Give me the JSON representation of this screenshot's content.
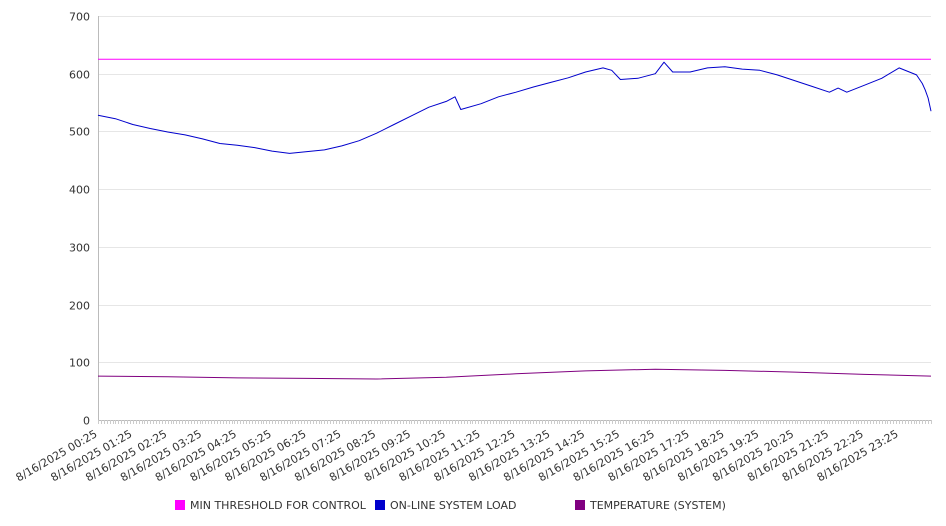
{
  "chart_data": {
    "type": "line",
    "title": "",
    "xlabel": "",
    "ylabel": "",
    "ylim": [
      0,
      700
    ],
    "yticks": [
      0,
      100,
      200,
      300,
      400,
      500,
      600,
      700
    ],
    "grid": true,
    "legend_position": "bottom",
    "x_tick_labels": [
      "8/16/2025 00:25",
      "8/16/2025 01:25",
      "8/16/2025 02:25",
      "8/16/2025 03:25",
      "8/16/2025 04:25",
      "8/16/2025 05:25",
      "8/16/2025 06:25",
      "8/16/2025 07:25",
      "8/16/2025 08:25",
      "8/16/2025 09:25",
      "8/16/2025 10:25",
      "8/16/2025 11:25",
      "8/16/2025 12:25",
      "8/16/2025 13:25",
      "8/16/2025 14:25",
      "8/16/2025 15:25",
      "8/16/2025 16:25",
      "8/16/2025 17:25",
      "8/16/2025 18:25",
      "8/16/2025 19:25",
      "8/16/2025 20:25",
      "8/16/2025 21:25",
      "8/16/2025 22:25",
      "8/16/2025 23:25"
    ],
    "x_start": "8/16/2025 00:25",
    "x_end": "8/17/2025 00:20",
    "series": [
      {
        "name": "MIN THRESHOLD FOR CONTROL",
        "color": "#ff00ff",
        "points": [
          [
            "8/16/2025 00:25",
            625
          ],
          [
            "8/17/2025 00:20",
            625
          ]
        ]
      },
      {
        "name": "ON-LINE SYSTEM LOAD",
        "color": "#0000cc",
        "points": [
          [
            "8/16/2025 00:25",
            528
          ],
          [
            "8/16/2025 00:55",
            522
          ],
          [
            "8/16/2025 01:25",
            512
          ],
          [
            "8/16/2025 01:55",
            505
          ],
          [
            "8/16/2025 02:25",
            499
          ],
          [
            "8/16/2025 02:55",
            494
          ],
          [
            "8/16/2025 03:25",
            487
          ],
          [
            "8/16/2025 03:55",
            479
          ],
          [
            "8/16/2025 04:25",
            476
          ],
          [
            "8/16/2025 04:55",
            472
          ],
          [
            "8/16/2025 05:25",
            466
          ],
          [
            "8/16/2025 05:55",
            462
          ],
          [
            "8/16/2025 06:25",
            465
          ],
          [
            "8/16/2025 06:55",
            468
          ],
          [
            "8/16/2025 07:25",
            475
          ],
          [
            "8/16/2025 07:55",
            484
          ],
          [
            "8/16/2025 08:25",
            497
          ],
          [
            "8/16/2025 08:55",
            512
          ],
          [
            "8/16/2025 09:25",
            527
          ],
          [
            "8/16/2025 09:55",
            542
          ],
          [
            "8/16/2025 10:25",
            552
          ],
          [
            "8/16/2025 10:40",
            560
          ],
          [
            "8/16/2025 10:50",
            538
          ],
          [
            "8/16/2025 11:25",
            548
          ],
          [
            "8/16/2025 11:55",
            560
          ],
          [
            "8/16/2025 12:25",
            568
          ],
          [
            "8/16/2025 12:55",
            577
          ],
          [
            "8/16/2025 13:25",
            585
          ],
          [
            "8/16/2025 13:55",
            593
          ],
          [
            "8/16/2025 14:25",
            603
          ],
          [
            "8/16/2025 14:55",
            610
          ],
          [
            "8/16/2025 15:10",
            606
          ],
          [
            "8/16/2025 15:25",
            590
          ],
          [
            "8/16/2025 15:55",
            592
          ],
          [
            "8/16/2025 16:25",
            600
          ],
          [
            "8/16/2025 16:40",
            620
          ],
          [
            "8/16/2025 16:55",
            603
          ],
          [
            "8/16/2025 17:25",
            603
          ],
          [
            "8/16/2025 17:55",
            610
          ],
          [
            "8/16/2025 18:25",
            612
          ],
          [
            "8/16/2025 18:55",
            608
          ],
          [
            "8/16/2025 19:25",
            606
          ],
          [
            "8/16/2025 19:55",
            598
          ],
          [
            "8/16/2025 20:25",
            588
          ],
          [
            "8/16/2025 20:55",
            578
          ],
          [
            "8/16/2025 21:25",
            568
          ],
          [
            "8/16/2025 21:40",
            575
          ],
          [
            "8/16/2025 21:55",
            568
          ],
          [
            "8/16/2025 22:25",
            580
          ],
          [
            "8/16/2025 22:55",
            592
          ],
          [
            "8/16/2025 23:25",
            610
          ],
          [
            "8/16/2025 23:55",
            598
          ],
          [
            "8/17/2025 00:05",
            583
          ],
          [
            "8/17/2025 00:10",
            572
          ],
          [
            "8/17/2025 00:15",
            558
          ],
          [
            "8/17/2025 00:20",
            535
          ]
        ]
      },
      {
        "name": "TEMPERATURE (SYSTEM)",
        "color": "#800080",
        "points": [
          [
            "8/16/2025 00:25",
            76
          ],
          [
            "8/16/2025 02:25",
            75
          ],
          [
            "8/16/2025 04:25",
            73
          ],
          [
            "8/16/2025 06:25",
            72
          ],
          [
            "8/16/2025 08:25",
            71
          ],
          [
            "8/16/2025 10:25",
            74
          ],
          [
            "8/16/2025 12:25",
            80
          ],
          [
            "8/16/2025 14:25",
            85
          ],
          [
            "8/16/2025 16:25",
            88
          ],
          [
            "8/16/2025 18:25",
            86
          ],
          [
            "8/16/2025 20:25",
            83
          ],
          [
            "8/16/2025 22:25",
            79
          ],
          [
            "8/17/2025 00:20",
            76
          ]
        ]
      }
    ]
  }
}
